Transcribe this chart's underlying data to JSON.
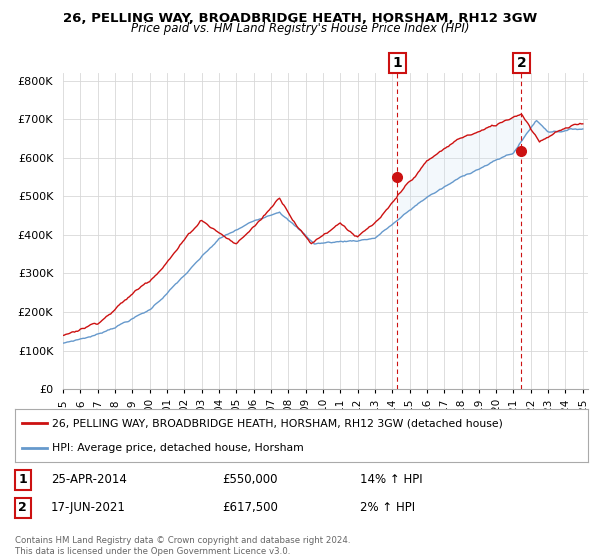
{
  "title_line1": "26, PELLING WAY, BROADBRIDGE HEATH, HORSHAM, RH12 3GW",
  "title_line2": "Price paid vs. HM Land Registry's House Price Index (HPI)",
  "ylabel_ticks": [
    "£0",
    "£100K",
    "£200K",
    "£300K",
    "£400K",
    "£500K",
    "£600K",
    "£700K",
    "£800K"
  ],
  "ytick_values": [
    0,
    100000,
    200000,
    300000,
    400000,
    500000,
    600000,
    700000,
    800000
  ],
  "ylim": [
    0,
    820000
  ],
  "hpi_color": "#6699cc",
  "price_color": "#cc1111",
  "fill_color": "#d0e4f5",
  "marker1_date": "25-APR-2014",
  "marker1_price": 550000,
  "marker2_date": "17-JUN-2021",
  "marker2_price": 617500,
  "legend_line1": "26, PELLING WAY, BROADBRIDGE HEATH, HORSHAM, RH12 3GW (detached house)",
  "legend_line2": "HPI: Average price, detached house, Horsham",
  "footer": "Contains HM Land Registry data © Crown copyright and database right 2024.\nThis data is licensed under the Open Government Licence v3.0.",
  "background_color": "#ffffff",
  "grid_color": "#d8d8d8",
  "marker1_x": 2014.29,
  "marker2_x": 2021.46,
  "xlim_left": 1995.0,
  "xlim_right": 2025.3,
  "xtick_years": [
    1995,
    1996,
    1997,
    1998,
    1999,
    2000,
    2001,
    2002,
    2003,
    2004,
    2005,
    2006,
    2007,
    2008,
    2009,
    2010,
    2011,
    2012,
    2013,
    2014,
    2015,
    2016,
    2017,
    2018,
    2019,
    2020,
    2021,
    2022,
    2023,
    2024,
    2025
  ]
}
